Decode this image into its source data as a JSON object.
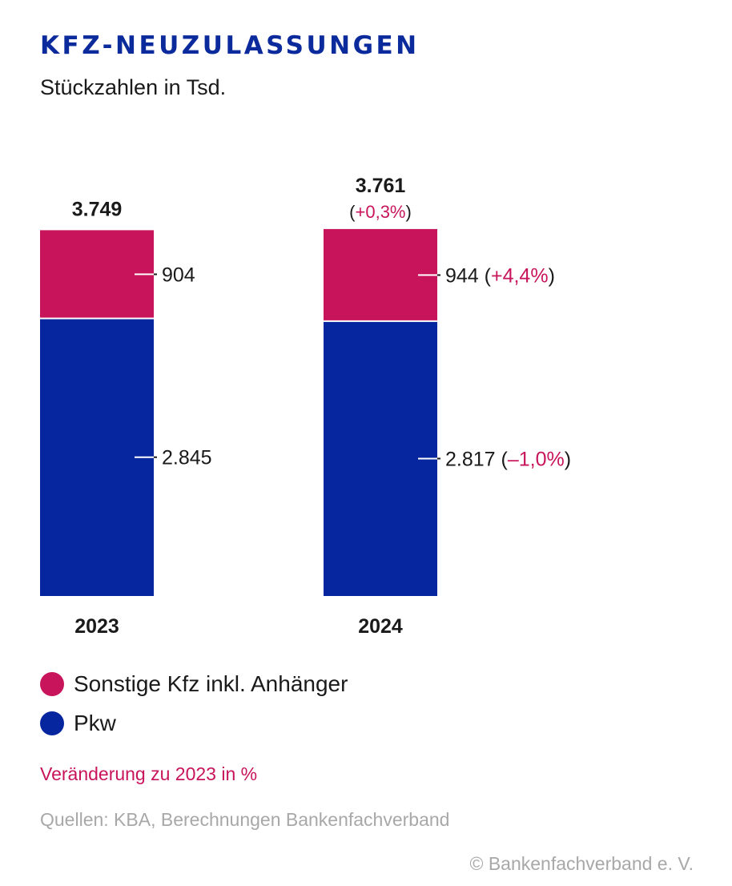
{
  "header": {
    "title": "KFZ-NEUZULASSUNGEN",
    "subtitle": "Stückzahlen in Tsd."
  },
  "colors": {
    "sonstige": "#c8145a",
    "pkw": "#05269e",
    "accent": "#c8145a",
    "title": "#0b2a9b",
    "muted": "#a8a8a8",
    "text": "#1a1a1a"
  },
  "chart_data": {
    "type": "bar",
    "stacked": true,
    "categories": [
      "2023",
      "2024"
    ],
    "series": [
      {
        "name": "Pkw",
        "values": [
          2845,
          2817
        ],
        "labels": [
          "2.845",
          "2.817"
        ],
        "changes": [
          "",
          "(–1,0%)"
        ]
      },
      {
        "name": "Sonstige Kfz inkl. Anhänger",
        "values": [
          904,
          944
        ],
        "labels": [
          "904",
          "944"
        ],
        "changes": [
          "",
          "(+4,4%)"
        ]
      }
    ],
    "totals": {
      "values": [
        3749,
        3761
      ],
      "labels": [
        "3.749",
        "3.761"
      ],
      "changes": [
        "",
        "(+0,3%)"
      ]
    },
    "ylim": [
      0,
      3761
    ],
    "xlabel": "",
    "ylabel": "",
    "grid": false,
    "legend_position": "bottom-left"
  },
  "legend": {
    "items": [
      {
        "label": "Sonstige Kfz inkl. Anhänger"
      },
      {
        "label": "Pkw"
      }
    ]
  },
  "notes": {
    "change": "Veränderung zu 2023 in %",
    "source": "Quellen: KBA, Berechnungen Bankenfachverband",
    "copyright": "© Bankenfachverband e. V."
  }
}
